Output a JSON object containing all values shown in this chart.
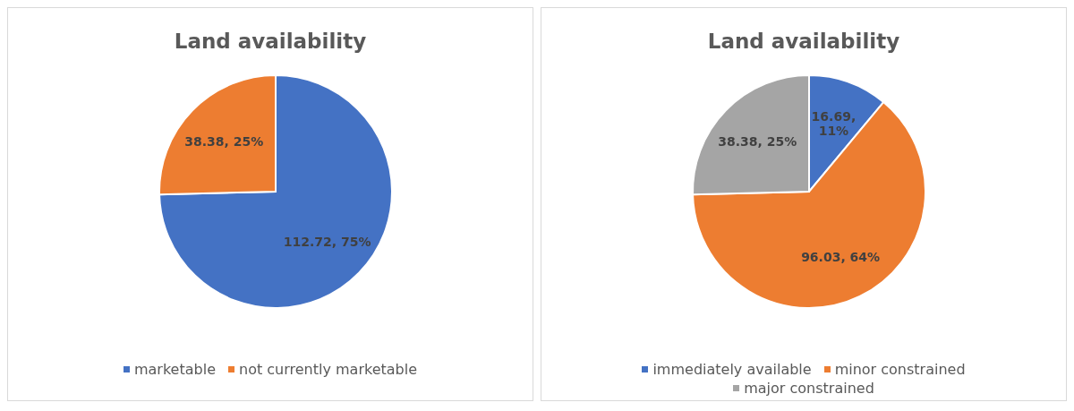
{
  "chart_data": [
    {
      "type": "pie",
      "title": "Land availability",
      "categories": [
        "marketable",
        "not currently marketable"
      ],
      "values": [
        112.72,
        38.38
      ],
      "value_labels": [
        "112.72, 75%",
        "38.38, 25%"
      ],
      "colors": [
        "#4472c4",
        "#ed7d31"
      ],
      "legend": "bottom"
    },
    {
      "type": "pie",
      "title": "Land availability",
      "categories": [
        "immediately available",
        "minor constrained",
        "major constrained"
      ],
      "values": [
        16.69,
        96.03,
        38.38
      ],
      "value_labels": [
        "16.69, 11%",
        "96.03, 64%",
        "38.38, 25%"
      ],
      "colors": [
        "#4472c4",
        "#ed7d31",
        "#a5a5a5"
      ],
      "legend": "bottom"
    }
  ]
}
